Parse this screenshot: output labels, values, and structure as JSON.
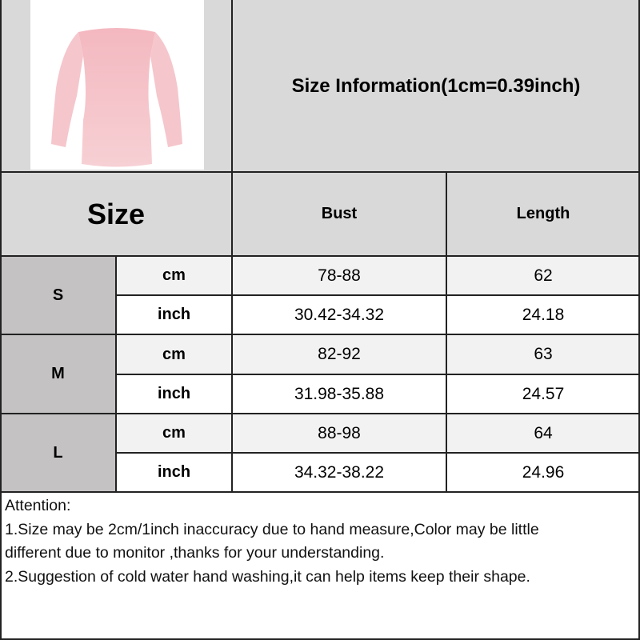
{
  "title": "Size Information(1cm=0.39inch)",
  "headers": {
    "size": "Size",
    "bust": "Bust",
    "length": "Length"
  },
  "product_image": "pink-sequin-off-shoulder-dress",
  "rows": [
    {
      "size": "S",
      "cm": {
        "unit": "cm",
        "bust": "78-88",
        "length": "62"
      },
      "inch": {
        "unit": "inch",
        "bust": "30.42-34.32",
        "length": "24.18"
      }
    },
    {
      "size": "M",
      "cm": {
        "unit": "cm",
        "bust": "82-92",
        "length": "63"
      },
      "inch": {
        "unit": "inch",
        "bust": "31.98-35.88",
        "length": "24.57"
      }
    },
    {
      "size": "L",
      "cm": {
        "unit": "cm",
        "bust": "88-98",
        "length": "64"
      },
      "inch": {
        "unit": "inch",
        "bust": "34.32-38.22",
        "length": "24.96"
      }
    }
  ],
  "attention": {
    "heading": "Attention:",
    "line1": "1.Size may be 2cm/1inch inaccuracy due to hand measure,Color may be little",
    "line2": "different due to monitor ,thanks for your understanding.",
    "line3": "2.Suggestion of cold water hand washing,it can help items keep their shape."
  },
  "colors": {
    "header_bg": "#d9d9d9",
    "size_col_bg": "#c4c2c2",
    "cm_row_bg": "#f2f2f2"
  }
}
